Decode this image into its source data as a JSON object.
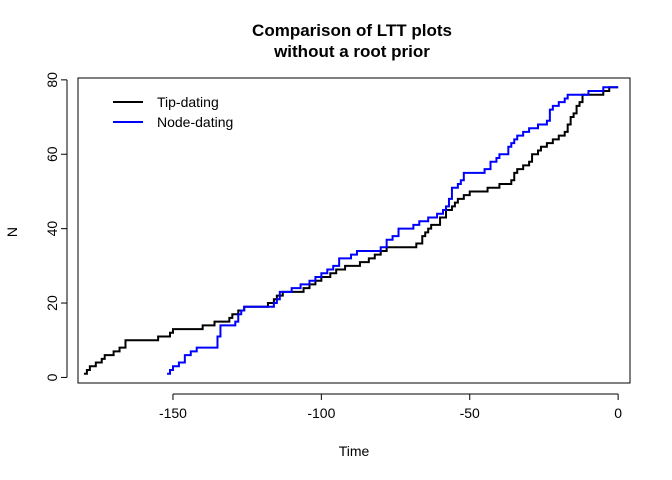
{
  "chart_data": {
    "type": "line",
    "step": true,
    "title_line1": "Comparison of LTT plots",
    "title_line2": "without a root prior",
    "xlabel": "Time",
    "ylabel": "N",
    "xlim": [
      -182,
      4
    ],
    "ylim": [
      -1.5,
      80.5
    ],
    "x_ticks": [
      -150,
      -100,
      -50,
      0
    ],
    "x_tick_labels": [
      "-150",
      "-100",
      "-50",
      "0"
    ],
    "y_ticks": [
      0,
      20,
      40,
      60,
      80
    ],
    "y_tick_labels": [
      "0",
      "20",
      "40",
      "60",
      "80"
    ],
    "grid": false,
    "legend_position": "top-left",
    "series": [
      {
        "name": "Tip-dating",
        "color": "#000000",
        "points": [
          [
            -180,
            1
          ],
          [
            -179,
            2
          ],
          [
            -178,
            3
          ],
          [
            -176,
            4
          ],
          [
            -174,
            5
          ],
          [
            -173,
            6
          ],
          [
            -170,
            7
          ],
          [
            -168,
            8
          ],
          [
            -166,
            10
          ],
          [
            -160,
            10
          ],
          [
            -155,
            11
          ],
          [
            -151,
            12
          ],
          [
            -150,
            13
          ],
          [
            -140,
            14
          ],
          [
            -136,
            15
          ],
          [
            -131,
            16
          ],
          [
            -130,
            17
          ],
          [
            -128,
            18
          ],
          [
            -126,
            19
          ],
          [
            -120,
            19
          ],
          [
            -118,
            20
          ],
          [
            -116,
            21
          ],
          [
            -115,
            22
          ],
          [
            -113,
            23
          ],
          [
            -106,
            24
          ],
          [
            -104,
            25
          ],
          [
            -102,
            26
          ],
          [
            -100,
            27
          ],
          [
            -97,
            28
          ],
          [
            -95,
            29
          ],
          [
            -92,
            30
          ],
          [
            -87,
            31
          ],
          [
            -84,
            32
          ],
          [
            -82,
            33
          ],
          [
            -80,
            34
          ],
          [
            -78,
            35
          ],
          [
            -72,
            35
          ],
          [
            -68,
            36
          ],
          [
            -66,
            38
          ],
          [
            -65,
            39
          ],
          [
            -64,
            40
          ],
          [
            -63,
            41
          ],
          [
            -60,
            43
          ],
          [
            -58,
            45
          ],
          [
            -56,
            46
          ],
          [
            -55,
            47
          ],
          [
            -54,
            48
          ],
          [
            -52,
            49
          ],
          [
            -50,
            50
          ],
          [
            -44,
            51
          ],
          [
            -40,
            52
          ],
          [
            -36,
            53
          ],
          [
            -35,
            55
          ],
          [
            -34,
            56
          ],
          [
            -32,
            57
          ],
          [
            -30,
            58
          ],
          [
            -29,
            60
          ],
          [
            -27,
            61
          ],
          [
            -26,
            62
          ],
          [
            -24,
            63
          ],
          [
            -22,
            64
          ],
          [
            -20,
            65
          ],
          [
            -18,
            66
          ],
          [
            -17,
            68
          ],
          [
            -16,
            70
          ],
          [
            -15,
            71
          ],
          [
            -14,
            73
          ],
          [
            -13,
            74
          ],
          [
            -12,
            76
          ],
          [
            -8,
            76
          ],
          [
            -5,
            77
          ],
          [
            -3,
            78
          ],
          [
            0,
            78
          ]
        ]
      },
      {
        "name": "Node-dating",
        "color": "#0000ff",
        "points": [
          [
            -152,
            1
          ],
          [
            -151,
            2
          ],
          [
            -150,
            3
          ],
          [
            -148,
            4
          ],
          [
            -146,
            6
          ],
          [
            -144,
            7
          ],
          [
            -142,
            8
          ],
          [
            -136,
            8
          ],
          [
            -135,
            11
          ],
          [
            -134,
            14
          ],
          [
            -130,
            14
          ],
          [
            -129,
            15
          ],
          [
            -128,
            17
          ],
          [
            -127,
            18
          ],
          [
            -126,
            19
          ],
          [
            -116,
            20
          ],
          [
            -115,
            21
          ],
          [
            -114,
            23
          ],
          [
            -110,
            24
          ],
          [
            -107,
            25
          ],
          [
            -104,
            26
          ],
          [
            -102,
            27
          ],
          [
            -100,
            28
          ],
          [
            -98,
            29
          ],
          [
            -96,
            30
          ],
          [
            -94,
            32
          ],
          [
            -90,
            33
          ],
          [
            -88,
            34
          ],
          [
            -80,
            35
          ],
          [
            -78,
            37
          ],
          [
            -76,
            38
          ],
          [
            -74,
            40
          ],
          [
            -69,
            41
          ],
          [
            -67,
            42
          ],
          [
            -64,
            43
          ],
          [
            -61,
            44
          ],
          [
            -59,
            45
          ],
          [
            -58,
            46
          ],
          [
            -57,
            48
          ],
          [
            -56,
            51
          ],
          [
            -54,
            52
          ],
          [
            -53,
            53
          ],
          [
            -52,
            55
          ],
          [
            -45,
            56
          ],
          [
            -43,
            58
          ],
          [
            -41,
            59
          ],
          [
            -40,
            60
          ],
          [
            -37,
            62
          ],
          [
            -36,
            63
          ],
          [
            -35,
            64
          ],
          [
            -34,
            65
          ],
          [
            -32,
            66
          ],
          [
            -30,
            67
          ],
          [
            -27,
            68
          ],
          [
            -24,
            69
          ],
          [
            -23,
            72
          ],
          [
            -22,
            73
          ],
          [
            -20,
            74
          ],
          [
            -18,
            75
          ],
          [
            -17,
            76
          ],
          [
            -10,
            77
          ],
          [
            -6,
            77
          ],
          [
            -5,
            78
          ],
          [
            0,
            78
          ]
        ]
      }
    ]
  }
}
